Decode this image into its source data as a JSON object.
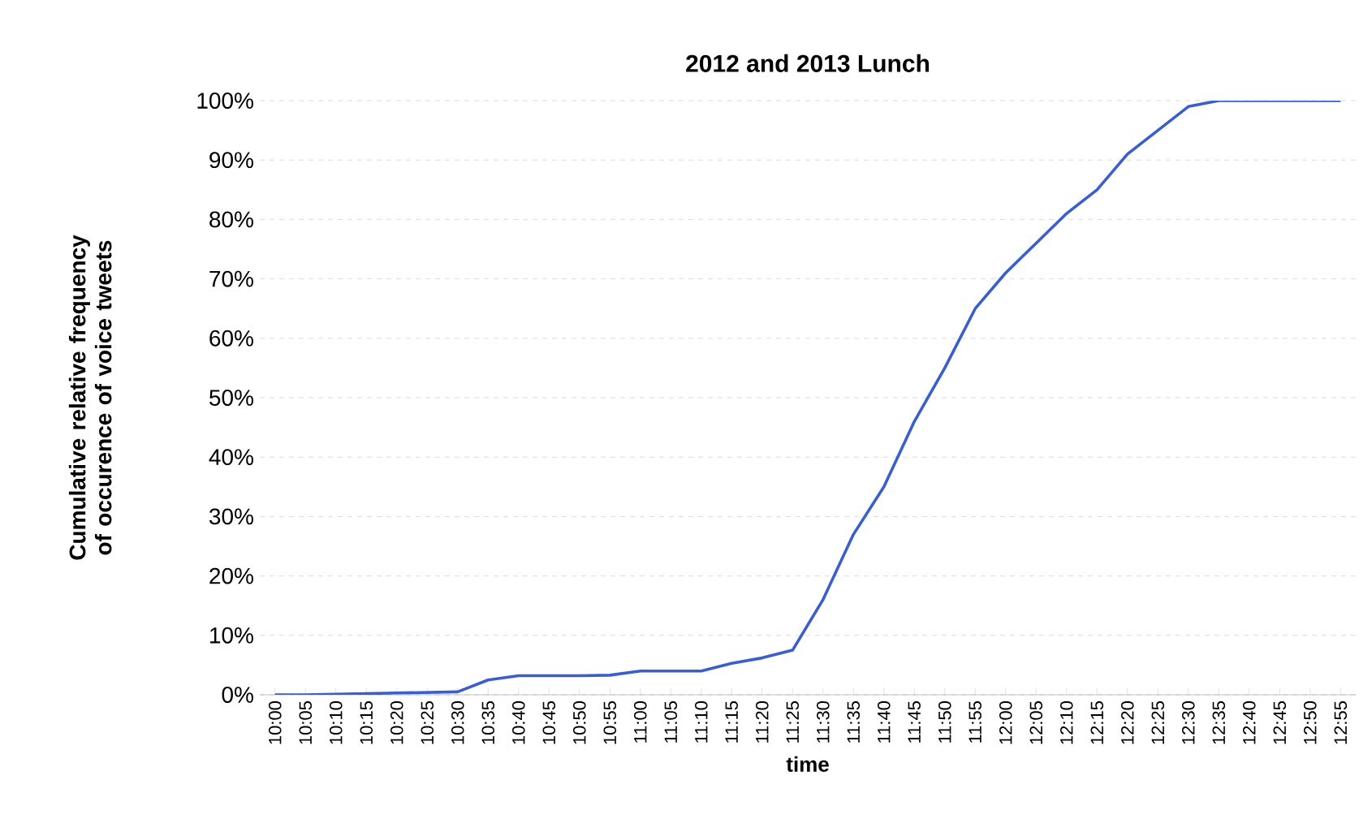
{
  "chart_data": {
    "type": "line",
    "title": "2012 and 2013 Lunch",
    "xlabel": "time",
    "ylabel": "Cumulative relative frequency of occurence of voice tweets",
    "categories": [
      "10:00",
      "10:05",
      "10:10",
      "10:15",
      "10:20",
      "10:25",
      "10:30",
      "10:35",
      "10:40",
      "10:45",
      "10:50",
      "10:55",
      "11:00",
      "11:05",
      "11:10",
      "11:15",
      "11:20",
      "11:25",
      "11:30",
      "11:35",
      "11:40",
      "11:45",
      "11:50",
      "11:55",
      "12:00",
      "12:05",
      "12:10",
      "12:15",
      "12:20",
      "12:25",
      "12:30",
      "12:35",
      "12:40",
      "12:45",
      "12:50",
      "12:55"
    ],
    "values": [
      0,
      0,
      0.1,
      0.2,
      0.3,
      0.4,
      0.5,
      2.5,
      3.2,
      3.2,
      3.2,
      3.3,
      4,
      4,
      4,
      5.3,
      6.2,
      7.5,
      16,
      27,
      35,
      46,
      55,
      65,
      71,
      76,
      81,
      85,
      91,
      95,
      99,
      100,
      100,
      100,
      100,
      100
    ],
    "color": "#3a5fcd",
    "ylim": [
      0,
      100
    ],
    "yticks": [
      {
        "value": 0,
        "label": "0%"
      },
      {
        "value": 10,
        "label": "10%"
      },
      {
        "value": 20,
        "label": "20%"
      },
      {
        "value": 30,
        "label": "30%"
      },
      {
        "value": 40,
        "label": "40%"
      },
      {
        "value": 50,
        "label": "50%"
      },
      {
        "value": 60,
        "label": "60%"
      },
      {
        "value": 70,
        "label": "70%"
      },
      {
        "value": 80,
        "label": "80%"
      },
      {
        "value": 90,
        "label": "90%"
      },
      {
        "value": 100,
        "label": "100%"
      }
    ],
    "grid": "y",
    "marker": "none",
    "line_style": "solid"
  }
}
